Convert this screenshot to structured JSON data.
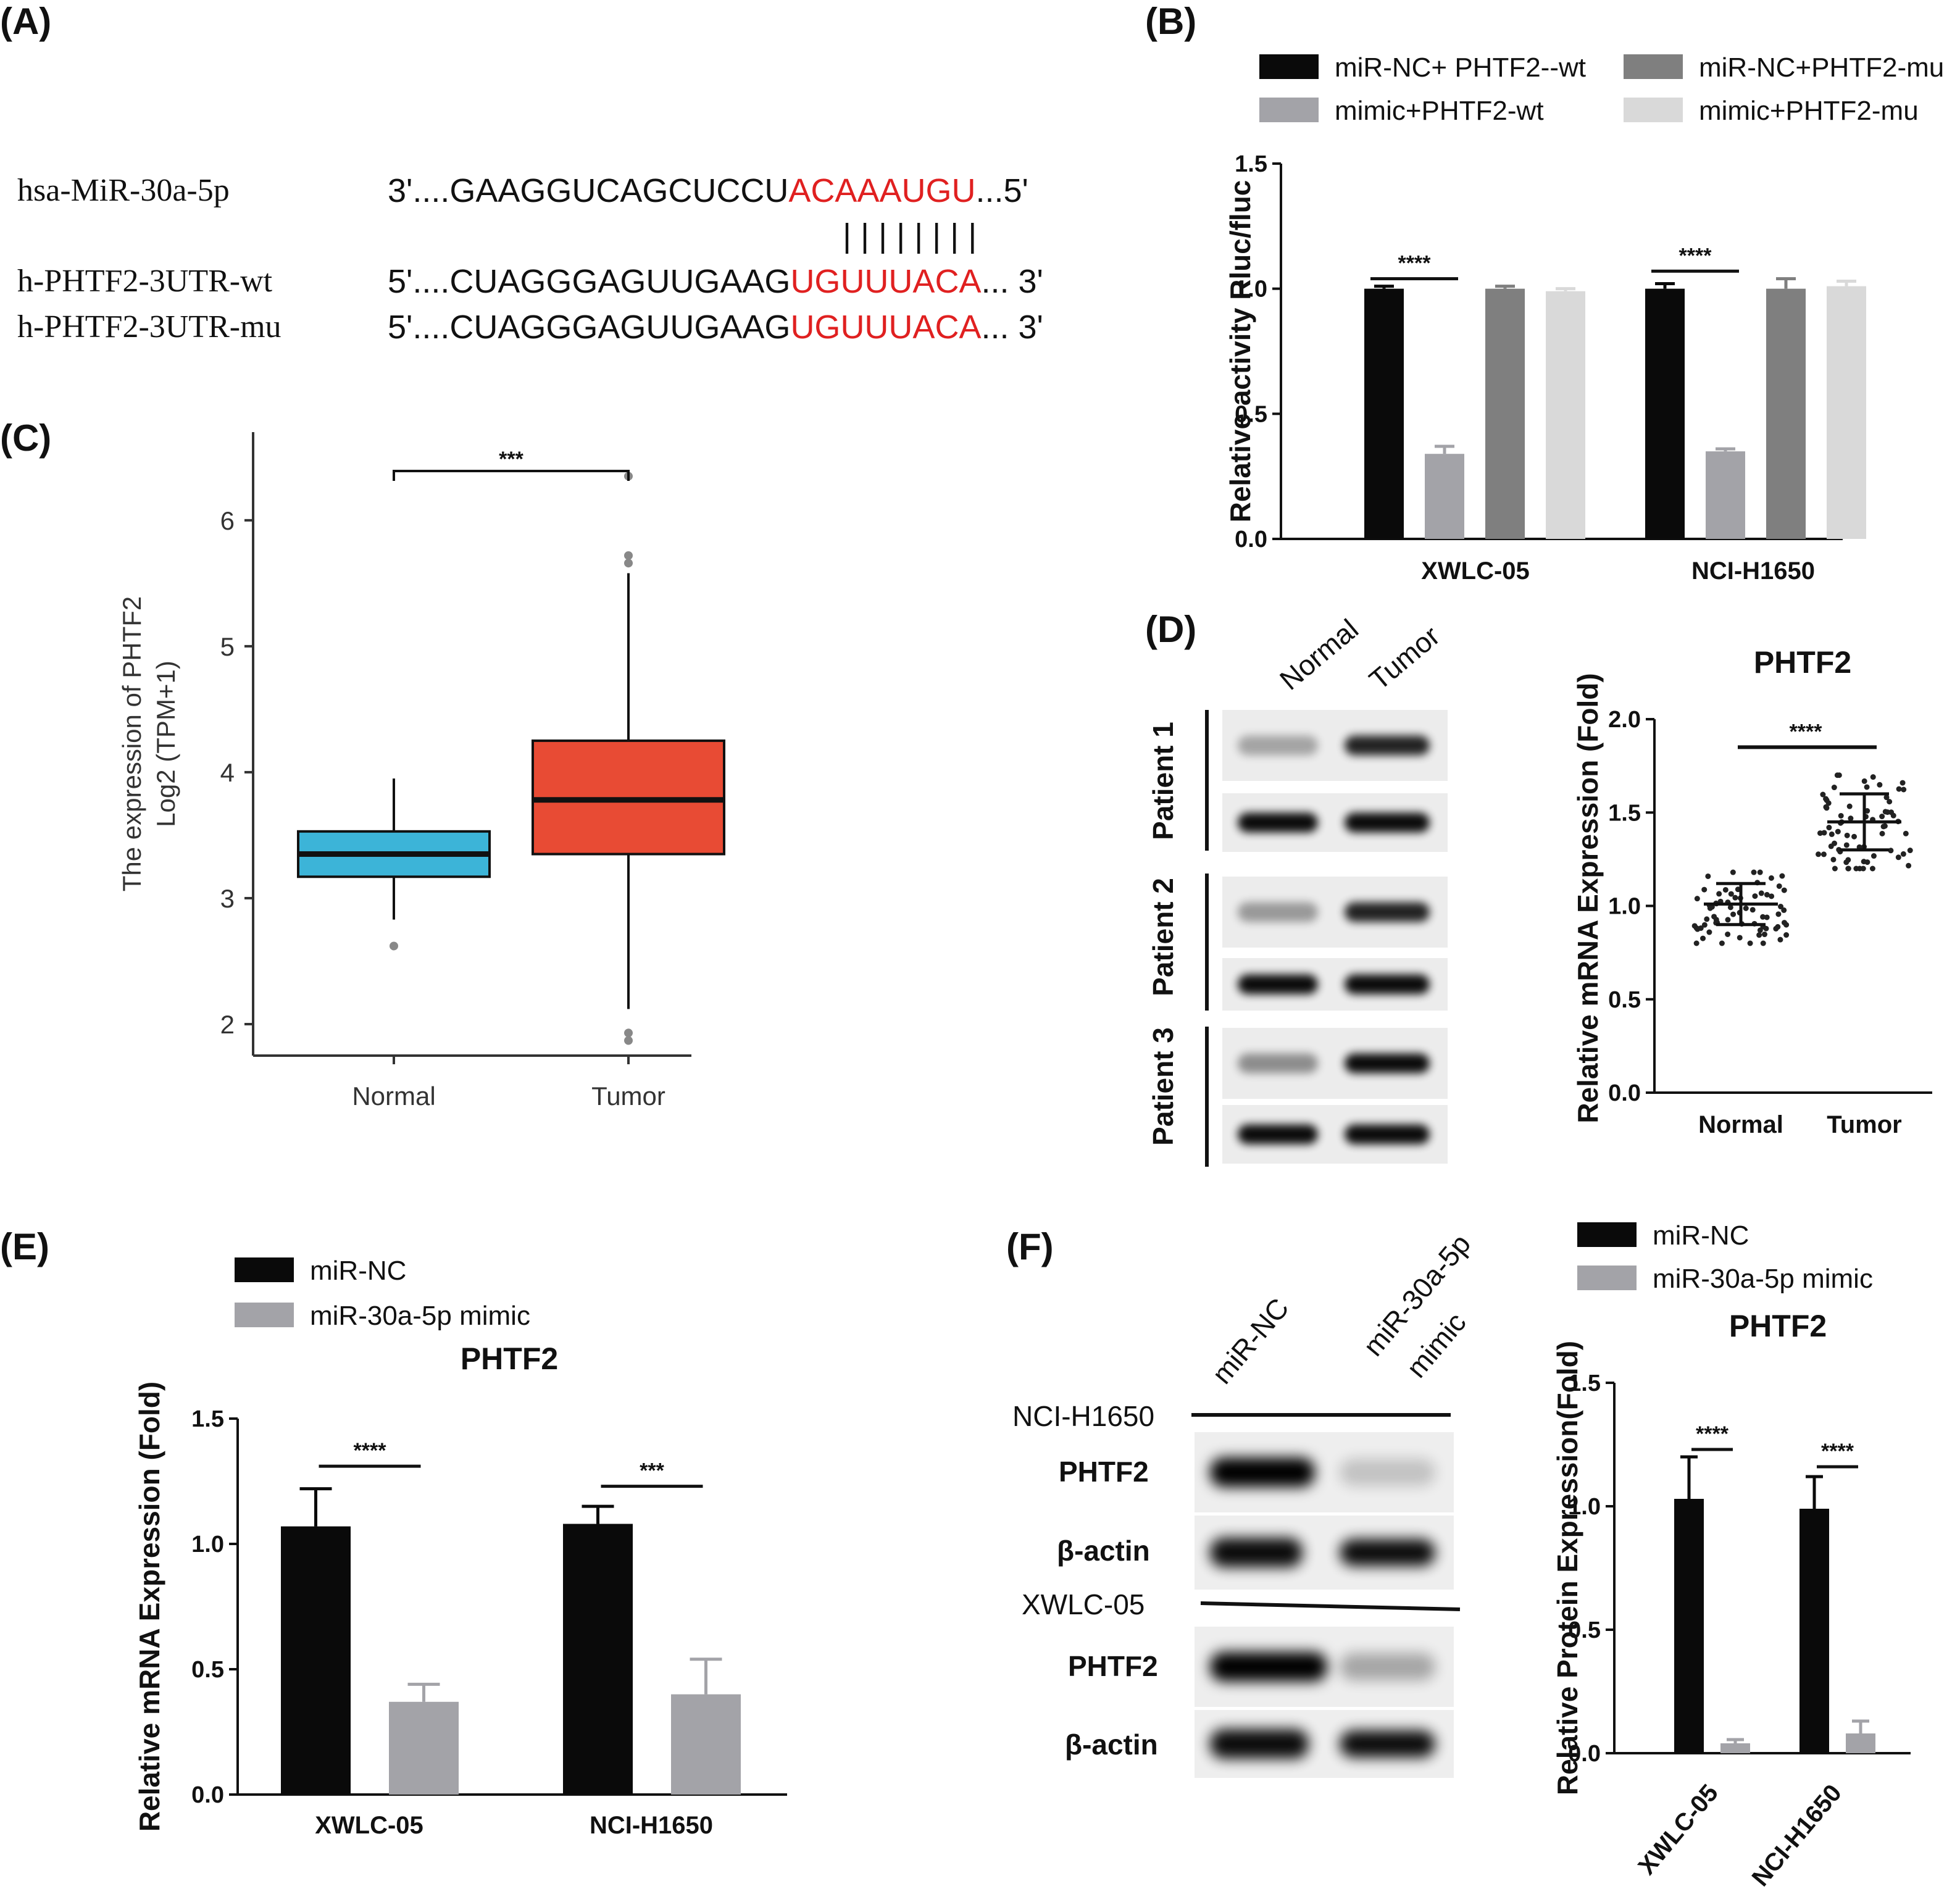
{
  "panels": {
    "A": {
      "label": "(A)",
      "rows": [
        {
          "name": "hsa-MiR-30a-5p",
          "prefix": "3'....GAAGGUCAGCUCCU",
          "seed": "ACAAAUGU",
          "suffix": "...5'"
        },
        {
          "name": "h-PHTF2-3UTR-wt",
          "prefix": "5'....CUAGGGAGUUGAAG",
          "seed": "UGUUUACA",
          "suffix": "... 3'"
        },
        {
          "name": "h-PHTF2-3UTR-mu",
          "prefix": "5'....CUAGGGAGUUGAAG",
          "seed": "UGUUUACA",
          "suffix": "... 3'"
        }
      ],
      "pairing": "| | | | | | | |"
    },
    "B": {
      "label": "(B)"
    },
    "C": {
      "label": "(C)"
    },
    "D": {
      "label": "(D)",
      "blot_lanes": [
        "Normal",
        "Tumor"
      ],
      "patients": [
        "Patient 1",
        "Patient 2",
        "Patient 3"
      ]
    },
    "E": {
      "label": "(E)"
    },
    "F": {
      "label": "(F)",
      "blot_lanes": [
        "miR-NC",
        "miR-30a-5p",
        "mimic"
      ],
      "cells": [
        "NCI-H1650",
        "XWLC-05"
      ],
      "bands": [
        "PHTF2",
        "β-actin"
      ]
    }
  },
  "chart_data": [
    {
      "id": "B",
      "type": "bar",
      "title": "",
      "ylabel": "Relative activity Rluc/fluc",
      "xlabel": "",
      "ylim": [
        0,
        1.5
      ],
      "yticks": [
        "0.0",
        "0.5",
        "1.0",
        "1.5"
      ],
      "categories": [
        "XWLC-05",
        "NCI-H1650"
      ],
      "series": [
        {
          "name": "miR-NC+ PHTF2--wt",
          "values": [
            1.0,
            1.0
          ],
          "errors": [
            0.01,
            0.02
          ],
          "color": "#0a0a0a"
        },
        {
          "name": "mimic+PHTF2-wt",
          "values": [
            0.34,
            0.35
          ],
          "errors": [
            0.03,
            0.01
          ],
          "color": "#a3a3a8"
        },
        {
          "name": "miR-NC+PHTF2-mu",
          "values": [
            1.0,
            1.0
          ],
          "errors": [
            0.01,
            0.04
          ],
          "color": "#7f7f7f"
        },
        {
          "name": "mimic+PHTF2-mu",
          "values": [
            0.99,
            1.01
          ],
          "errors": [
            0.01,
            0.02
          ],
          "color": "#d9d9d9"
        }
      ],
      "significance": [
        "****",
        "****"
      ]
    },
    {
      "id": "C",
      "type": "box",
      "ylabel_line1": "The expression of PHTF2",
      "ylabel_line2": "Log2 (TPM+1)",
      "ylim": [
        1.75,
        6.7
      ],
      "yticks": [
        "2",
        "3",
        "4",
        "5",
        "6"
      ],
      "categories": [
        "Normal",
        "Tumor"
      ],
      "boxes": [
        {
          "name": "Normal",
          "whisker_low": 2.83,
          "q1": 3.17,
          "median": 3.35,
          "q3": 3.53,
          "whisker_high": 3.95,
          "outliers": [
            2.62
          ],
          "color": "#3cb4d8"
        },
        {
          "name": "Tumor",
          "whisker_low": 2.12,
          "q1": 3.35,
          "median": 3.78,
          "q3": 4.25,
          "whisker_high": 5.58,
          "outliers": [
            6.35,
            5.72,
            5.66,
            1.93,
            1.87
          ],
          "color": "#e84b34"
        }
      ],
      "significance": "***"
    },
    {
      "id": "D",
      "type": "scatter",
      "title": "PHTF2",
      "ylabel": "Relative mRNA Expression (Fold)",
      "ylim": [
        0,
        2.0
      ],
      "yticks": [
        "0.0",
        "0.5",
        "1.0",
        "1.5",
        "2.0"
      ],
      "categories": [
        "Normal",
        "Tumor"
      ],
      "groups": [
        {
          "name": "Normal",
          "mean": 1.01,
          "sd": 0.11,
          "min": 0.8,
          "max": 1.18
        },
        {
          "name": "Tumor",
          "mean": 1.45,
          "sd": 0.15,
          "min": 1.2,
          "max": 1.7
        }
      ],
      "significance": "****"
    },
    {
      "id": "E",
      "type": "bar",
      "title": "PHTF2",
      "ylabel": "Relative mRNA Expression (Fold)",
      "ylim": [
        0,
        1.5
      ],
      "yticks": [
        "0.0",
        "0.5",
        "1.0",
        "1.5"
      ],
      "categories": [
        "XWLC-05",
        "NCI-H1650"
      ],
      "series": [
        {
          "name": "miR-NC",
          "values": [
            1.07,
            1.08
          ],
          "errors": [
            0.15,
            0.07
          ],
          "color": "#0a0a0a"
        },
        {
          "name": "miR-30a-5p mimic",
          "values": [
            0.37,
            0.4
          ],
          "errors": [
            0.07,
            0.14
          ],
          "color": "#a3a3a8"
        }
      ],
      "significance": [
        "****",
        "***"
      ]
    },
    {
      "id": "F",
      "type": "bar",
      "title": "PHTF2",
      "ylabel": "Relative Protein Expression(Fold)",
      "ylim": [
        0,
        1.5
      ],
      "yticks": [
        "0.0",
        "0.5",
        "1.0",
        "1.5"
      ],
      "categories": [
        "XWLC-05",
        "NCI-H1650"
      ],
      "series": [
        {
          "name": "miR-NC",
          "values": [
            1.03,
            0.99
          ],
          "errors": [
            0.17,
            0.13
          ],
          "color": "#0a0a0a"
        },
        {
          "name": "miR-30a-5p mimic",
          "values": [
            0.04,
            0.08
          ],
          "errors": [
            0.015,
            0.05
          ],
          "color": "#a3a3a8"
        }
      ],
      "significance": [
        "****",
        "****"
      ]
    }
  ]
}
